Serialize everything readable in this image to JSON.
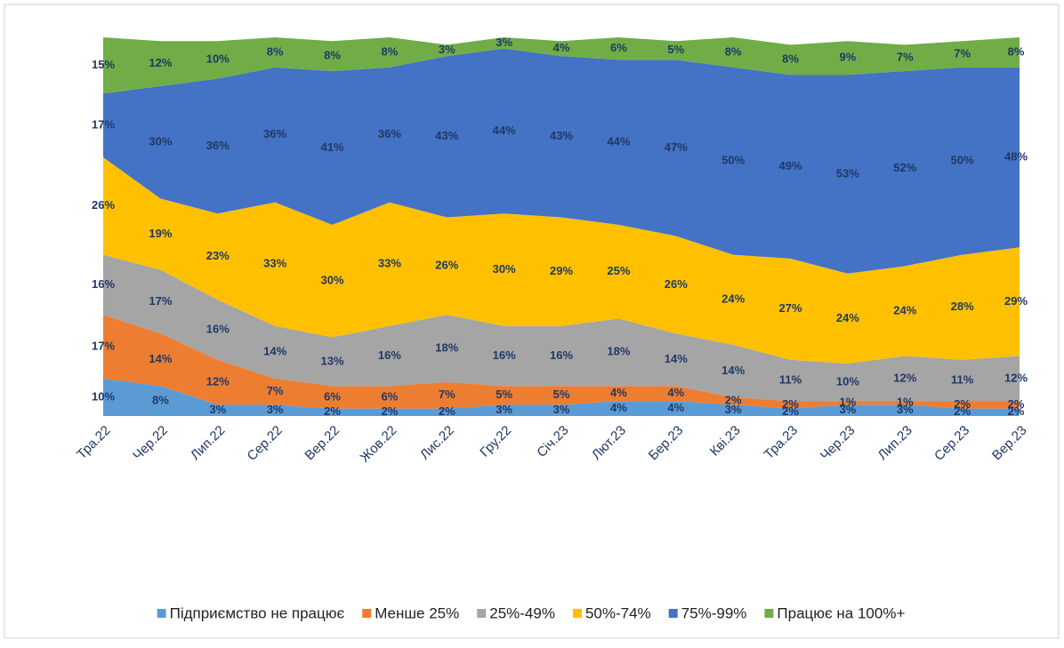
{
  "chart_data": {
    "type": "stacked_area",
    "categories": [
      "Тра.22",
      "Чер.22",
      "Лип.22",
      "Сер.22",
      "Вер.22",
      "Жов.22",
      "Лис.22",
      "Гру.22",
      "Січ.23",
      "Лют.23",
      "Бер.23",
      "Кві.23",
      "Тра.23",
      "Чер.23",
      "Лип.23",
      "Сер.23",
      "Вер.23"
    ],
    "series": [
      {
        "name": "Підприємство не працює",
        "color": "#5b9bd5",
        "values": [
          10,
          8,
          3,
          3,
          2,
          2,
          2,
          3,
          3,
          4,
          4,
          3,
          2,
          3,
          3,
          2,
          2
        ],
        "value_labels": [
          "10%",
          "8%",
          "3%",
          "3%",
          "2%",
          "2%",
          "2%",
          "3%",
          "3%",
          "4%",
          "4%",
          "3%",
          "2%",
          "3%",
          "3%",
          "2%",
          "2%"
        ]
      },
      {
        "name": "Менше 25%",
        "color": "#ed7d31",
        "values": [
          17,
          14,
          12,
          7,
          6,
          6,
          7,
          5,
          5,
          4,
          4,
          2,
          2,
          1,
          1,
          2,
          2
        ],
        "value_labels": [
          "17%",
          "14%",
          "12%",
          "7%",
          "6%",
          "6%",
          "7%",
          "5%",
          "5%",
          "4%",
          "4%",
          "2%",
          "2%",
          "1%",
          "1%",
          "2%",
          "2%"
        ]
      },
      {
        "name": "25%-49%",
        "color": "#a5a5a5",
        "values": [
          16,
          17,
          16,
          14,
          13,
          16,
          18,
          16,
          16,
          18,
          14,
          14,
          11,
          10,
          12,
          11,
          12
        ],
        "value_labels": [
          "16%",
          "17%",
          "16%",
          "14%",
          "13%",
          "16%",
          "18%",
          "16%",
          "16%",
          "18%",
          "14%",
          "14%",
          "11%",
          "10%",
          "12%",
          "11%",
          "12%"
        ]
      },
      {
        "name": "50%-74%",
        "color": "#ffc000",
        "values": [
          26,
          19,
          23,
          33,
          30,
          33,
          26,
          30,
          29,
          25,
          26,
          24,
          27,
          24,
          24,
          28,
          29
        ],
        "value_labels": [
          "26%",
          "19%",
          "23%",
          "33%",
          "30%",
          "33%",
          "26%",
          "30%",
          "29%",
          "25%",
          "26%",
          "24%",
          "27%",
          "24%",
          "24%",
          "28%",
          "29%"
        ]
      },
      {
        "name": "75%-99%",
        "color": "#4472c4",
        "values": [
          17,
          30,
          36,
          36,
          41,
          36,
          43,
          44,
          43,
          44,
          47,
          50,
          49,
          53,
          52,
          50,
          48
        ],
        "value_labels": [
          "17%",
          "30%",
          "36%",
          "36%",
          "41%",
          "36%",
          "43%",
          "44%",
          "43%",
          "44%",
          "47%",
          "50%",
          "49%",
          "53%",
          "52%",
          "50%",
          "48%"
        ]
      },
      {
        "name": "Працює на 100%+",
        "color": "#70ad47",
        "values": [
          15,
          12,
          10,
          8,
          8,
          8,
          3,
          3,
          4,
          6,
          5,
          8,
          8,
          9,
          7,
          7,
          8
        ],
        "value_labels": [
          "15%",
          "12%",
          "10%",
          "8%",
          "8%",
          "8%",
          "3%",
          "3%",
          "4%",
          "6%",
          "5%",
          "8%",
          "8%",
          "9%",
          "7%",
          "7%",
          "8%"
        ]
      }
    ]
  }
}
